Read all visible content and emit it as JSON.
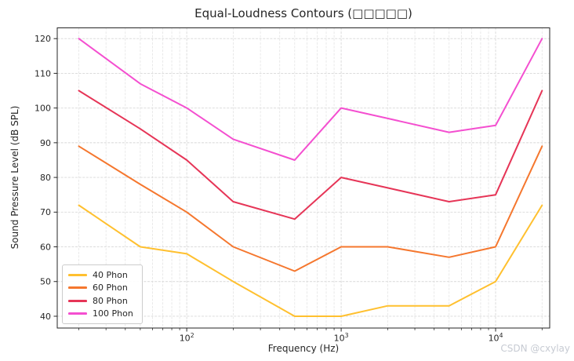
{
  "watermark": "CSDN @cxylay",
  "colors": {
    "background": "#ffffff",
    "text": "#262626",
    "spine": "#262626",
    "grid_major": "#d8d8d8",
    "grid_minor": "#e4e4e4",
    "watermark": "#c7cbd3"
  },
  "chart_data": {
    "type": "line",
    "title": "Equal-Loudness Contours (□□□□□)",
    "xlabel": "Frequency (Hz)",
    "ylabel": "Sound Pressure Level (dB SPL)",
    "x_scale": "log",
    "grid": true,
    "legend_position": "lower left",
    "xlim": [
      14.5,
      22400
    ],
    "ylim": [
      36.6,
      123.1
    ],
    "x": [
      20,
      50,
      100,
      200,
      500,
      1000,
      2000,
      5000,
      10000,
      20000
    ],
    "series": [
      {
        "name": "40 Phon",
        "color": "#FFC02F",
        "values": [
          72,
          60,
          58,
          50,
          40,
          40,
          43,
          43,
          50,
          72
        ]
      },
      {
        "name": "60 Phon",
        "color": "#F5772E",
        "values": [
          89,
          78,
          70,
          60,
          53,
          60,
          60,
          57,
          60,
          89
        ]
      },
      {
        "name": "80 Phon",
        "color": "#E63557",
        "values": [
          105,
          94,
          85,
          73,
          68,
          80,
          77,
          73,
          75,
          105
        ]
      },
      {
        "name": "100 Phon",
        "color": "#F44FD0",
        "values": [
          120,
          107,
          100,
          91,
          85,
          100,
          97,
          93,
          95,
          120
        ]
      }
    ],
    "y_ticks": [
      40,
      50,
      60,
      70,
      80,
      90,
      100,
      110,
      120
    ],
    "x_major_ticks": [
      {
        "value": 100,
        "label_base": "10",
        "label_exp": "2"
      },
      {
        "value": 1000,
        "label_base": "10",
        "label_exp": "3"
      },
      {
        "value": 10000,
        "label_base": "10",
        "label_exp": "4"
      }
    ]
  }
}
